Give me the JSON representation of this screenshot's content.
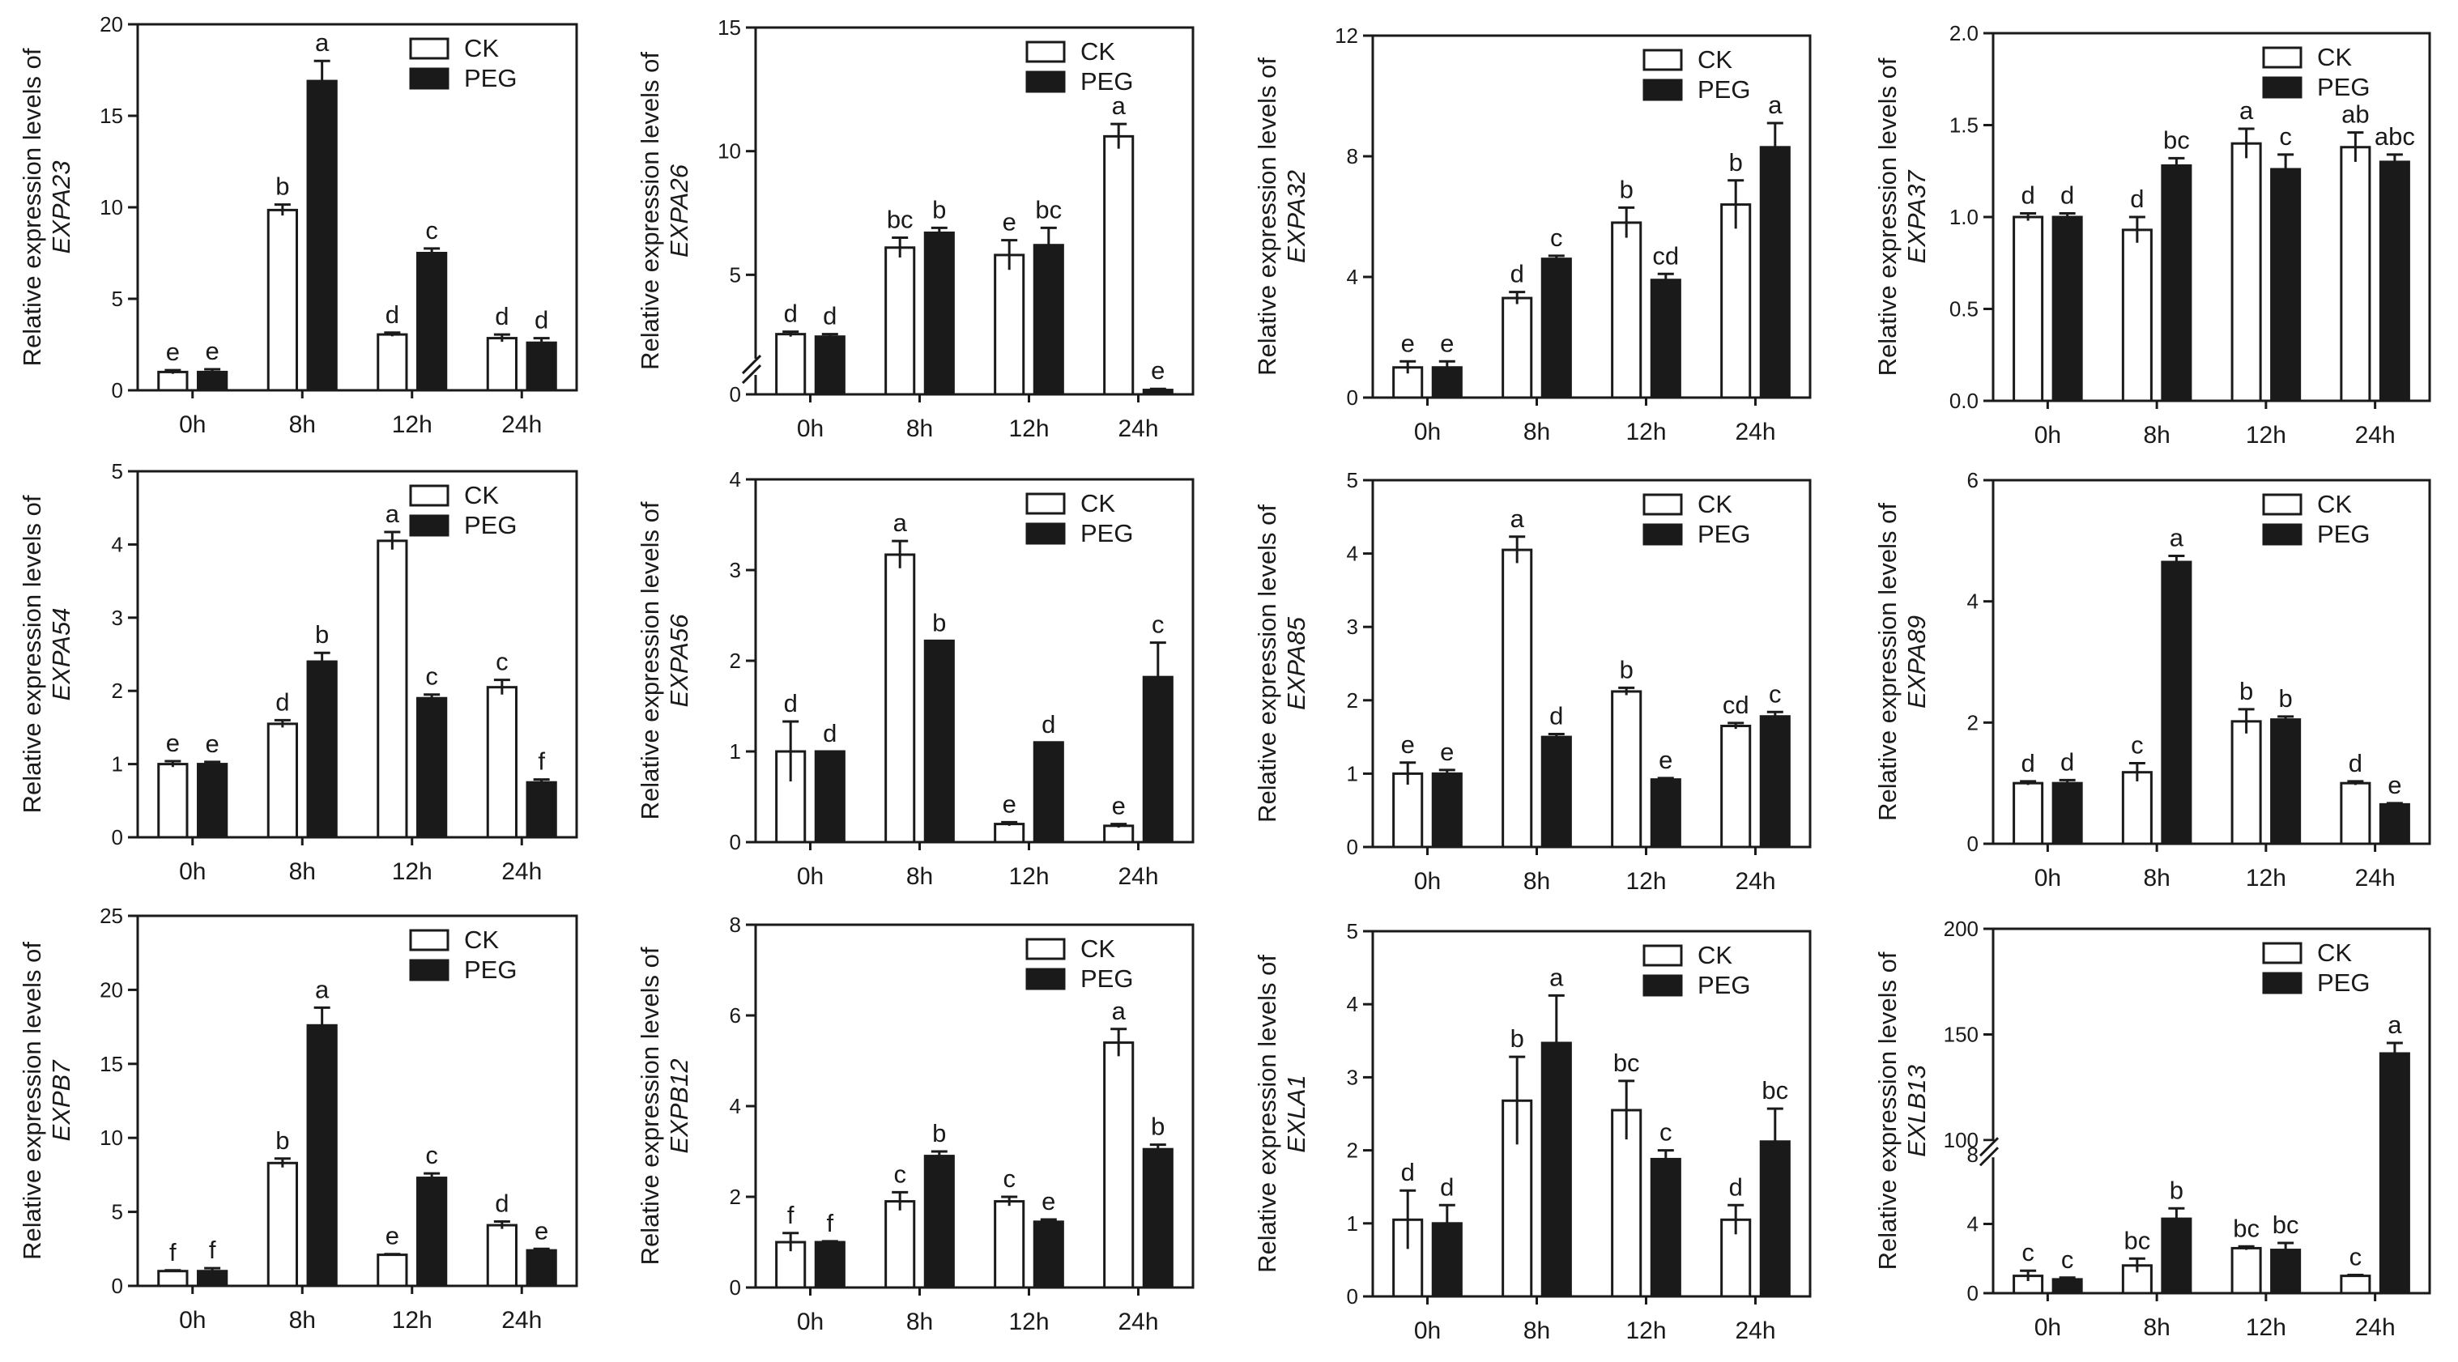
{
  "figure": {
    "legend_ck": "CK",
    "legend_peg": "PEG",
    "ylabel_prefix": "Relative expression levels of",
    "colors": {
      "ck": "#ffffff",
      "peg": "#1a1a1a",
      "axis": "#1a1a1a"
    }
  },
  "chart_data": [
    {
      "type": "bar",
      "gene": "EXPA23",
      "categories": [
        "0h",
        "8h",
        "12h",
        "24h"
      ],
      "ylim": [
        0,
        20
      ],
      "yticks": [
        "0",
        "5",
        "10",
        "15",
        "20"
      ],
      "series": [
        {
          "name": "CK",
          "values": [
            1.0,
            9.85,
            3.05,
            2.85
          ],
          "errors": [
            0.1,
            0.3,
            0.1,
            0.2
          ],
          "letters": [
            "e",
            "b",
            "d",
            "d"
          ]
        },
        {
          "name": "PEG",
          "values": [
            1.0,
            16.9,
            7.5,
            2.6
          ],
          "errors": [
            0.15,
            1.1,
            0.25,
            0.25
          ],
          "letters": [
            "e",
            "a",
            "c",
            "d"
          ]
        }
      ]
    },
    {
      "type": "bar",
      "gene": "EXPA26",
      "categories": [
        "0h",
        "8h",
        "12h",
        "24h"
      ],
      "ylim": [
        0,
        15
      ],
      "yticks": [
        "0",
        "5",
        "10",
        "15"
      ],
      "axis_break": true,
      "series": [
        {
          "name": "CK",
          "values": [
            2.6,
            6.1,
            5.8,
            10.6
          ],
          "errors": [
            0.1,
            0.4,
            0.6,
            0.5
          ],
          "letters": [
            "d",
            "bc",
            "e",
            "a"
          ]
        },
        {
          "name": "PEG",
          "values": [
            2.5,
            6.7,
            6.2,
            0.2
          ],
          "errors": [
            0.1,
            0.2,
            0.7,
            0.05
          ],
          "letters": [
            "d",
            "b",
            "bc",
            "e"
          ]
        }
      ]
    },
    {
      "type": "bar",
      "gene": "EXPA32",
      "categories": [
        "0h",
        "8h",
        "12h",
        "24h"
      ],
      "ylim": [
        0,
        12
      ],
      "yticks": [
        "0",
        "4",
        "8",
        "12"
      ],
      "series": [
        {
          "name": "CK",
          "values": [
            1.0,
            3.3,
            5.8,
            6.4
          ],
          "errors": [
            0.2,
            0.2,
            0.5,
            0.8
          ],
          "letters": [
            "e",
            "d",
            "b",
            "b"
          ]
        },
        {
          "name": "PEG",
          "values": [
            1.0,
            4.6,
            3.9,
            8.3
          ],
          "errors": [
            0.2,
            0.1,
            0.2,
            0.8
          ],
          "letters": [
            "e",
            "c",
            "cd",
            "a"
          ]
        }
      ]
    },
    {
      "type": "bar",
      "gene": "EXPA37",
      "categories": [
        "0h",
        "8h",
        "12h",
        "24h"
      ],
      "ylim": [
        0,
        2.0
      ],
      "yticks": [
        "0.0",
        "0.5",
        "1.0",
        "1.5",
        "2.0"
      ],
      "series": [
        {
          "name": "CK",
          "values": [
            1.0,
            0.93,
            1.4,
            1.38
          ],
          "errors": [
            0.02,
            0.07,
            0.08,
            0.08
          ],
          "letters": [
            "d",
            "d",
            "a",
            "ab"
          ]
        },
        {
          "name": "PEG",
          "values": [
            1.0,
            1.28,
            1.26,
            1.3
          ],
          "errors": [
            0.02,
            0.04,
            0.08,
            0.04
          ],
          "letters": [
            "d",
            "bc",
            "c",
            "abc"
          ]
        }
      ]
    },
    {
      "type": "bar",
      "gene": "EXPA54",
      "categories": [
        "0h",
        "8h",
        "12h",
        "24h"
      ],
      "ylim": [
        0,
        5
      ],
      "yticks": [
        "0",
        "1",
        "2",
        "3",
        "4",
        "5"
      ],
      "series": [
        {
          "name": "CK",
          "values": [
            1.0,
            1.55,
            4.05,
            2.05
          ],
          "errors": [
            0.04,
            0.05,
            0.12,
            0.1
          ],
          "letters": [
            "e",
            "d",
            "a",
            "c"
          ]
        },
        {
          "name": "PEG",
          "values": [
            1.0,
            2.4,
            1.9,
            0.75
          ],
          "errors": [
            0.03,
            0.12,
            0.05,
            0.04
          ],
          "letters": [
            "e",
            "b",
            "c",
            "f"
          ]
        }
      ]
    },
    {
      "type": "bar",
      "gene": "EXPA56",
      "categories": [
        "0h",
        "8h",
        "12h",
        "24h"
      ],
      "ylim": [
        0,
        4
      ],
      "yticks": [
        "0",
        "1",
        "2",
        "3",
        "4"
      ],
      "series": [
        {
          "name": "CK",
          "values": [
            1.0,
            3.17,
            0.2,
            0.18
          ],
          "errors": [
            0.33,
            0.15,
            0.02,
            0.02
          ],
          "letters": [
            "d",
            "a",
            "e",
            "e"
          ]
        },
        {
          "name": "PEG",
          "values": [
            1.0,
            2.22,
            1.1,
            1.82
          ],
          "errors": [
            0.0,
            0.0,
            0.0,
            0.38
          ],
          "letters": [
            "d",
            "b",
            "d",
            "c"
          ]
        }
      ]
    },
    {
      "type": "bar",
      "gene": "EXPA85",
      "categories": [
        "0h",
        "8h",
        "12h",
        "24h"
      ],
      "ylim": [
        0,
        5
      ],
      "yticks": [
        "0",
        "1",
        "2",
        "3",
        "4",
        "5"
      ],
      "series": [
        {
          "name": "CK",
          "values": [
            1.0,
            4.05,
            2.12,
            1.65
          ],
          "errors": [
            0.15,
            0.18,
            0.05,
            0.04
          ],
          "letters": [
            "e",
            "a",
            "b",
            "cd"
          ]
        },
        {
          "name": "PEG",
          "values": [
            1.0,
            1.5,
            0.92,
            1.78
          ],
          "errors": [
            0.05,
            0.04,
            0.02,
            0.06
          ],
          "letters": [
            "e",
            "d",
            "e",
            "c"
          ]
        }
      ]
    },
    {
      "type": "bar",
      "gene": "EXPA89",
      "categories": [
        "0h",
        "8h",
        "12h",
        "24h"
      ],
      "ylim": [
        0,
        6
      ],
      "yticks": [
        "0",
        "2",
        "4",
        "6"
      ],
      "series": [
        {
          "name": "CK",
          "values": [
            1.0,
            1.18,
            2.02,
            1.0
          ],
          "errors": [
            0.03,
            0.15,
            0.2,
            0.03
          ],
          "letters": [
            "d",
            "c",
            "b",
            "d"
          ]
        },
        {
          "name": "PEG",
          "values": [
            1.0,
            4.65,
            2.05,
            0.65
          ],
          "errors": [
            0.05,
            0.1,
            0.05,
            0.02
          ],
          "letters": [
            "d",
            "a",
            "b",
            "e"
          ]
        }
      ]
    },
    {
      "type": "bar",
      "gene": "EXPB7",
      "categories": [
        "0h",
        "8h",
        "12h",
        "24h"
      ],
      "ylim": [
        0,
        25
      ],
      "yticks": [
        "0",
        "5",
        "10",
        "15",
        "20",
        "25"
      ],
      "series": [
        {
          "name": "CK",
          "values": [
            1.0,
            8.3,
            2.1,
            4.1
          ],
          "errors": [
            0.05,
            0.3,
            0.05,
            0.25
          ],
          "letters": [
            "f",
            "b",
            "e",
            "d"
          ]
        },
        {
          "name": "PEG",
          "values": [
            1.0,
            17.6,
            7.3,
            2.4
          ],
          "errors": [
            0.2,
            1.2,
            0.3,
            0.1
          ],
          "letters": [
            "f",
            "a",
            "c",
            "e"
          ]
        }
      ]
    },
    {
      "type": "bar",
      "gene": "EXPB12",
      "categories": [
        "0h",
        "8h",
        "12h",
        "24h"
      ],
      "ylim": [
        0,
        8
      ],
      "yticks": [
        "0",
        "2",
        "4",
        "6",
        "8"
      ],
      "series": [
        {
          "name": "CK",
          "values": [
            1.0,
            1.9,
            1.9,
            5.4
          ],
          "errors": [
            0.2,
            0.2,
            0.1,
            0.3
          ],
          "letters": [
            "f",
            "c",
            "c",
            "a"
          ]
        },
        {
          "name": "PEG",
          "values": [
            1.0,
            2.9,
            1.45,
            3.05
          ],
          "errors": [
            0.02,
            0.1,
            0.05,
            0.1
          ],
          "letters": [
            "f",
            "b",
            "e",
            "b"
          ]
        }
      ]
    },
    {
      "type": "bar",
      "gene": "EXLA1",
      "categories": [
        "0h",
        "8h",
        "12h",
        "24h"
      ],
      "ylim": [
        0,
        5
      ],
      "yticks": [
        "0",
        "1",
        "2",
        "3",
        "4",
        "5"
      ],
      "series": [
        {
          "name": "CK",
          "values": [
            1.05,
            2.68,
            2.55,
            1.05
          ],
          "errors": [
            0.4,
            0.6,
            0.4,
            0.2
          ],
          "letters": [
            "d",
            "b",
            "bc",
            "d"
          ]
        },
        {
          "name": "PEG",
          "values": [
            1.0,
            3.47,
            1.88,
            2.12
          ],
          "errors": [
            0.25,
            0.65,
            0.12,
            0.45
          ],
          "letters": [
            "d",
            "a",
            "c",
            "bc"
          ]
        }
      ]
    },
    {
      "type": "bar",
      "gene": "EXLB13",
      "categories": [
        "0h",
        "8h",
        "12h",
        "24h"
      ],
      "ylim": [
        0,
        200
      ],
      "yticks": [
        "0",
        "4",
        "8",
        "100",
        "150",
        "200"
      ],
      "axis_break": true,
      "series": [
        {
          "name": "CK",
          "values": [
            1.0,
            1.6,
            2.6,
            1.0
          ],
          "errors": [
            0.3,
            0.4,
            0.1,
            0.05
          ],
          "letters": [
            "c",
            "bc",
            "bc",
            "c"
          ]
        },
        {
          "name": "PEG",
          "values": [
            0.8,
            4.3,
            2.5,
            141
          ],
          "errors": [
            0.1,
            0.6,
            0.4,
            5
          ],
          "letters": [
            "c",
            "b",
            "bc",
            "a"
          ]
        }
      ]
    }
  ]
}
